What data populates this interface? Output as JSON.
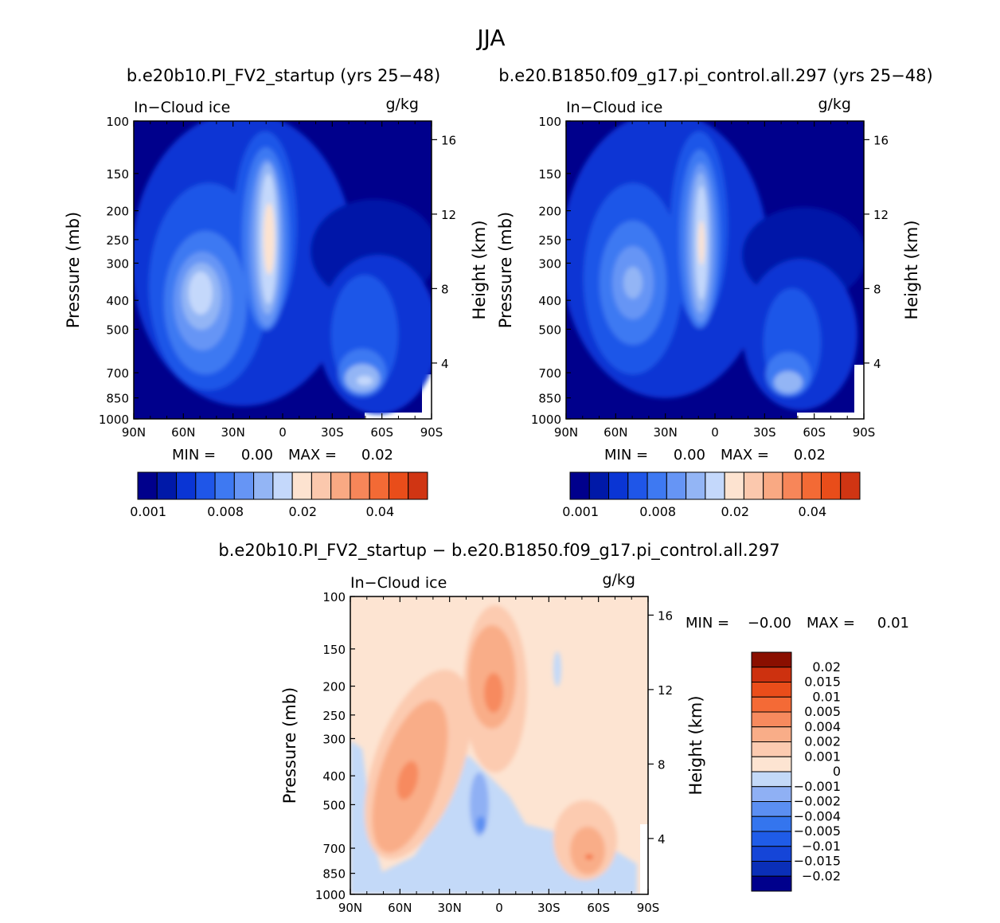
{
  "figure": {
    "season": "JJA",
    "subtitle_a": "b.e20b10.PI_FV2_startup (yrs 25−48)",
    "subtitle_b": "b.e20.B1850.f09_g17.pi_control.all.297 (yrs 25−48)",
    "diff_title": "b.e20b10.PI_FV2_startup − b.e20.B1850.f09_g17.pi_control.all.297"
  },
  "common": {
    "variable": "In−Cloud ice",
    "units": "g/kg",
    "ylabel": "Pressure (mb)",
    "ylabel2": "Height (km)",
    "pressure_ticks": [
      "100",
      "150",
      "200",
      "250",
      "300",
      "400",
      "500",
      "700",
      "850",
      "1000"
    ],
    "height_ticks": [
      "16",
      "12",
      "8",
      "4"
    ],
    "lat_ticks": [
      "90N",
      "60N",
      "30N",
      "0",
      "30S",
      "60S",
      "90S"
    ],
    "min_label": "MIN =",
    "max_label": "MAX ="
  },
  "colors": {
    "blues": [
      "#00008c",
      "#0019a8",
      "#0a35d4",
      "#1f56e8",
      "#3e79f2",
      "#6695f5",
      "#93b5f5",
      "#c4d8fb"
    ],
    "neutral_light": "#ddeafc",
    "peach": "#fde3d0",
    "reds": [
      "#fbc8ad",
      "#f9a983",
      "#f78659",
      "#f36a35",
      "#e94d1a",
      "#d03513",
      "#b1210c",
      "#8a0f00"
    ],
    "diff_blues": [
      "#00008c",
      "#0a2fb8",
      "#1545d8",
      "#1f5ce8",
      "#3475ee",
      "#5b8ff2",
      "#8fb0f4",
      "#c3d9f8"
    ],
    "diff_reds": [
      "#fde4d2",
      "#fccbb0",
      "#f9ad88",
      "#f78a5e",
      "#f46a36",
      "#ea4d1a",
      "#cd310f",
      "#8a0f00"
    ]
  },
  "chart_data": [
    {
      "id": "panel_a",
      "type": "heatmap",
      "title": "b.e20b10.PI_FV2_startup (yrs 25−48)",
      "field": "In−Cloud ice",
      "units": "g/kg",
      "xlabel": "",
      "ylabel": "Pressure (mb)",
      "ylabel2": "Height (km)",
      "x_range": [
        90,
        -90
      ],
      "y_range": [
        1000,
        100
      ],
      "min": "0.00",
      "max": "0.02",
      "colorbar_labels": [
        "0.001",
        "0.008",
        "0.02",
        "0.04"
      ],
      "colorbar_levels": 15
    },
    {
      "id": "panel_b",
      "type": "heatmap",
      "title": "b.e20.B1850.f09_g17.pi_control.all.297 (yrs 25−48)",
      "field": "In−Cloud ice",
      "units": "g/kg",
      "xlabel": "",
      "ylabel": "Pressure (mb)",
      "ylabel2": "Height (km)",
      "x_range": [
        90,
        -90
      ],
      "y_range": [
        1000,
        100
      ],
      "min": "0.00",
      "max": "0.02",
      "colorbar_labels": [
        "0.001",
        "0.008",
        "0.02",
        "0.04"
      ],
      "colorbar_levels": 15
    },
    {
      "id": "panel_diff",
      "type": "heatmap",
      "title": "b.e20b10.PI_FV2_startup − b.e20.B1850.f09_g17.pi_control.all.297",
      "field": "In−Cloud ice",
      "units": "g/kg",
      "xlabel": "",
      "ylabel": "Pressure (mb)",
      "ylabel2": "Height (km)",
      "x_range": [
        90,
        -90
      ],
      "y_range": [
        1000,
        100
      ],
      "min": "−0.00",
      "max": "0.01",
      "colorbar_labels": [
        "0.02",
        "0.015",
        "0.01",
        "0.005",
        "0.004",
        "0.002",
        "0.001",
        "0",
        "−0.001",
        "−0.002",
        "−0.004",
        "−0.005",
        "−0.01",
        "−0.015",
        "−0.02"
      ]
    }
  ],
  "panel_a_stats": {
    "min_value": "0.00",
    "max_value": "0.02"
  },
  "panel_b_stats": {
    "min_value": "0.00",
    "max_value": "0.02"
  },
  "diff_stats": {
    "min_value": "−0.00",
    "max_value": "0.01"
  }
}
